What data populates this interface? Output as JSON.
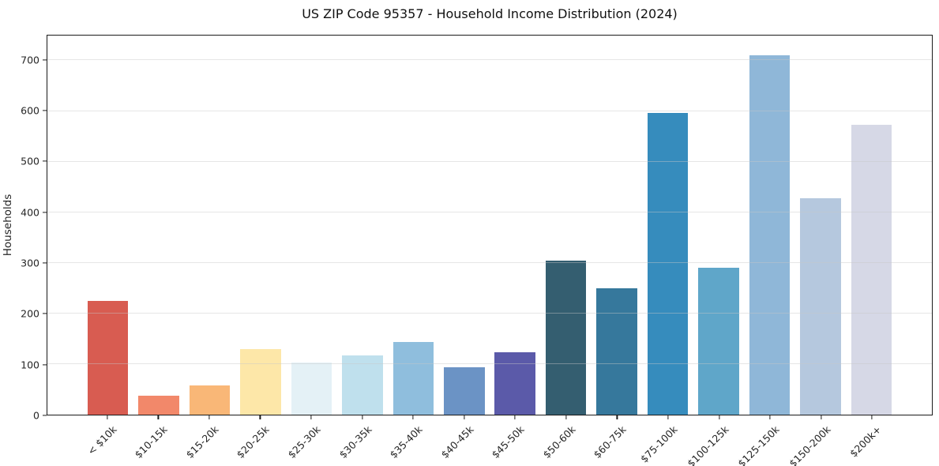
{
  "chart_data": {
    "type": "bar",
    "title": "US ZIP Code 95357 - Household Income Distribution (2024)",
    "xlabel": "",
    "ylabel": "Households",
    "categories": [
      "< $10k",
      "$10-15k",
      "$15-20k",
      "$20-25k",
      "$25-30k",
      "$30-35k",
      "$35-40k",
      "$40-45k",
      "$45-50k",
      "$50-60k",
      "$60-75k",
      "$75-100k",
      "$100-125k",
      "$125-150k",
      "$150-200k",
      "$200k+"
    ],
    "values": [
      225,
      38,
      57,
      130,
      103,
      117,
      144,
      93,
      124,
      305,
      250,
      596,
      290,
      710,
      427,
      573
    ],
    "bar_colors": [
      "#d85c51",
      "#f2886a",
      "#f9b777",
      "#fde7a8",
      "#e4f1f6",
      "#bfe0ed",
      "#8fbedd",
      "#6b93c5",
      "#5b5aa9",
      "#345e70",
      "#36789c",
      "#368cbd",
      "#5fa6c9",
      "#8fb7d8",
      "#b5c8de",
      "#d6d8e6"
    ],
    "ylim": [
      0,
      749
    ],
    "yticks": [
      0,
      100,
      200,
      300,
      400,
      500,
      600,
      700
    ],
    "grid": "horizontal",
    "legend": "none",
    "colors": {
      "background": "#ffffff",
      "spine": "#1a1a1a",
      "gridline": "#e6e6e6",
      "text": "#262626"
    }
  }
}
